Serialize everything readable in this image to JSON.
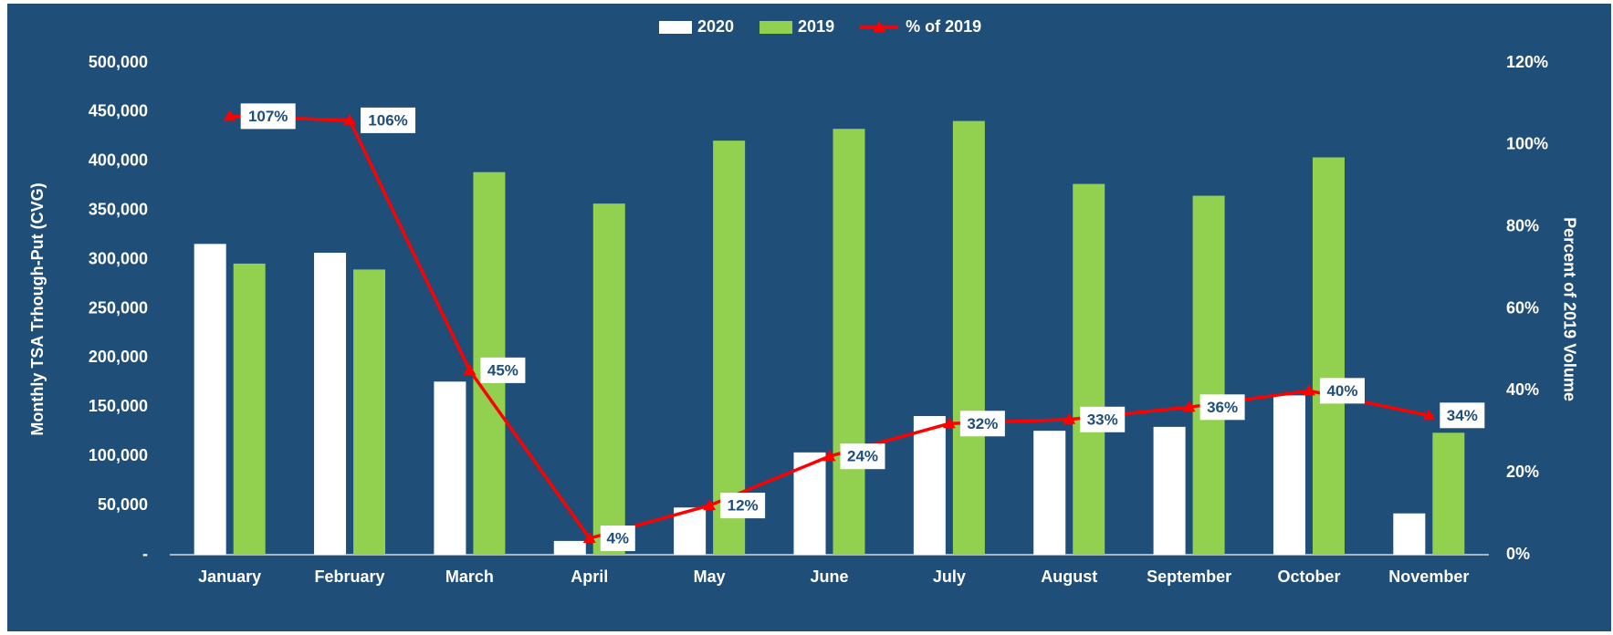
{
  "chart_data": {
    "type": "bar",
    "categories": [
      "January",
      "February",
      "March",
      "April",
      "May",
      "June",
      "July",
      "August",
      "September",
      "October",
      "November"
    ],
    "series": [
      {
        "name": "2020",
        "color": "#ffffff",
        "values": [
          316000,
          307000,
          176000,
          14000,
          48000,
          104000,
          141000,
          126000,
          130000,
          162000,
          42000
        ]
      },
      {
        "name": "2019",
        "color": "#92d050",
        "values": [
          296000,
          290000,
          389000,
          357000,
          421000,
          433000,
          441000,
          377000,
          365000,
          404000,
          124000
        ]
      },
      {
        "name": "% of 2019",
        "color": "#ff0000",
        "type": "line",
        "axis": "y2",
        "values": [
          107,
          106,
          45,
          4,
          12,
          24,
          32,
          33,
          36,
          40,
          34
        ],
        "value_labels": [
          "107%",
          "106%",
          "45%",
          "4%",
          "12%",
          "24%",
          "32%",
          "33%",
          "36%",
          "40%",
          "34%"
        ]
      }
    ],
    "ylabel": "Monthly TSA Trhough-Put (CVG)",
    "y2label": "Percent of 2019 Volume",
    "ylim": [
      0,
      500000
    ],
    "yticks": [
      {
        "value": 0,
        "label": "-"
      },
      {
        "value": 50000,
        "label": "50,000"
      },
      {
        "value": 100000,
        "label": "100,000"
      },
      {
        "value": 150000,
        "label": "150,000"
      },
      {
        "value": 200000,
        "label": "200,000"
      },
      {
        "value": 250000,
        "label": "250,000"
      },
      {
        "value": 300000,
        "label": "300,000"
      },
      {
        "value": 350000,
        "label": "350,000"
      },
      {
        "value": 400000,
        "label": "400,000"
      },
      {
        "value": 450000,
        "label": "450,000"
      },
      {
        "value": 500000,
        "label": "500,000"
      }
    ],
    "y2lim": [
      0,
      120
    ],
    "y2ticks": [
      {
        "value": 0,
        "label": "0%"
      },
      {
        "value": 20,
        "label": "20%"
      },
      {
        "value": 40,
        "label": "40%"
      },
      {
        "value": 60,
        "label": "60%"
      },
      {
        "value": 80,
        "label": "80%"
      },
      {
        "value": 100,
        "label": "100%"
      },
      {
        "value": 120,
        "label": "120%"
      }
    ],
    "legend": "top"
  }
}
